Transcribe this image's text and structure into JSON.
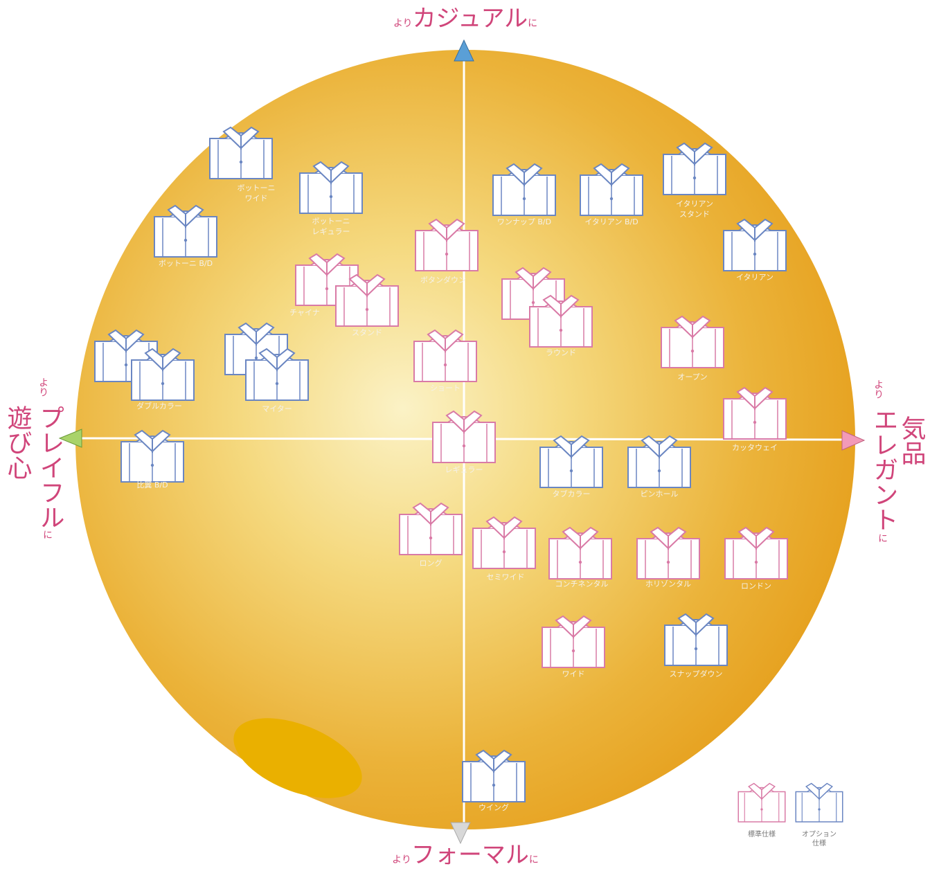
{
  "axes": {
    "top": {
      "prefix": "より",
      "main": "カジュアル",
      "suffix": "に"
    },
    "bottom": {
      "prefix": "より",
      "main": "フォーマル",
      "suffix": "に"
    },
    "left": {
      "prefix": "より",
      "main": "プレイフル",
      "suffix": "に",
      "sub": "遊び心"
    },
    "right": {
      "prefix": "より",
      "main": "エレガント",
      "suffix": "に",
      "sub": "気品"
    }
  },
  "nodes": [
    {
      "label": [
        "ボットーニ",
        "ワイド"
      ],
      "color": "#6a86c2"
    },
    {
      "label": [
        "ボットーニ",
        "レギュラー"
      ],
      "color": "#6a86c2"
    },
    {
      "label": [
        "ボットーニ B/D"
      ],
      "color": "#6a86c2"
    },
    {
      "label": [
        "ボタンダウン"
      ],
      "color": "#d97aa6"
    },
    {
      "label": [
        "チャイナ"
      ],
      "color": "#d97aa6"
    },
    {
      "label": [
        "スタンド"
      ],
      "color": "#d97aa6"
    },
    {
      "label": [
        "ワンナップ B/D"
      ],
      "color": "#6a86c2"
    },
    {
      "label": [
        "イタリアン B/D"
      ],
      "color": "#6a86c2"
    },
    {
      "label": [
        "イタリアン",
        "スタンド"
      ],
      "color": "#6a86c2"
    },
    {
      "label": [
        "イタリアン"
      ],
      "color": "#6a86c2"
    },
    {
      "label": [
        "ラウンド"
      ],
      "color": "#d97aa6"
    },
    {
      "label": [
        "オープン"
      ],
      "color": "#d97aa6"
    },
    {
      "label": [
        "ショート"
      ],
      "color": "#d97aa6"
    },
    {
      "label": [
        "ダブルカラー"
      ],
      "color": "#6a86c2"
    },
    {
      "label": [
        "マイター"
      ],
      "color": "#6a86c2"
    },
    {
      "label": [
        "カッタウェイ"
      ],
      "color": "#d97aa6"
    },
    {
      "label": [
        "比翼 B/D"
      ],
      "color": "#6a86c2"
    },
    {
      "label": [
        "レギュラー"
      ],
      "color": "#d97aa6"
    },
    {
      "label": [
        "タブカラー"
      ],
      "color": "#6a86c2"
    },
    {
      "label": [
        "ピンホール"
      ],
      "color": "#6a86c2"
    },
    {
      "label": [
        "ロング"
      ],
      "color": "#d97aa6"
    },
    {
      "label": [
        "セミワイド"
      ],
      "color": "#d97aa6"
    },
    {
      "label": [
        "コンチネンタル"
      ],
      "color": "#d97aa6"
    },
    {
      "label": [
        "ホリゾンタル"
      ],
      "color": "#d97aa6"
    },
    {
      "label": [
        "ロンドン"
      ],
      "color": "#d97aa6"
    },
    {
      "label": [
        "ワイド"
      ],
      "color": "#d97aa6"
    },
    {
      "label": [
        "スナップダウン"
      ],
      "color": "#6a86c2"
    },
    {
      "label": [
        "ウイング"
      ],
      "color": "#6a86c2"
    }
  ],
  "legend": [
    {
      "label": [
        "標準仕様"
      ],
      "color": "#d97aa6"
    },
    {
      "label": [
        "オプション",
        "仕様"
      ],
      "color": "#6a86c2"
    }
  ]
}
